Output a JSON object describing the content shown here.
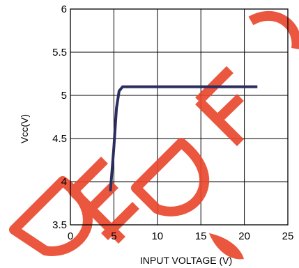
{
  "chart_data": {
    "type": "line",
    "title": "",
    "xlabel": "INPUT VOLTAGE (V)",
    "ylabel": "Vcc(V)",
    "xlim": [
      0,
      25
    ],
    "ylim": [
      3.5,
      6
    ],
    "x_ticks": [
      0,
      5,
      10,
      15,
      20,
      25
    ],
    "y_ticks": [
      3.5,
      4,
      4.5,
      5,
      5.5,
      6
    ],
    "x_tick_labels": [
      "0",
      "5",
      "10",
      "15",
      "20",
      "25"
    ],
    "y_tick_labels": [
      "3.5",
      "4",
      "4.5",
      "5",
      "5.5",
      "6"
    ],
    "grid": true,
    "series": [
      {
        "x": [
          4.6,
          5.0,
          5.3,
          5.6,
          6.0,
          10.0,
          15.0,
          21.5
        ],
        "y": [
          3.89,
          4.4,
          4.85,
          5.05,
          5.1,
          5.1,
          5.1,
          5.1
        ],
        "color": "#2b2d5e"
      }
    ],
    "watermark_text": "DED FO",
    "watermark_color": "#e8442a"
  }
}
